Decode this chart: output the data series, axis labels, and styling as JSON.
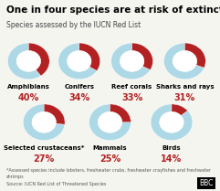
{
  "title": "One in four species are at risk of extinction",
  "subtitle": "Species assessed by the IUCN Red List",
  "footnote": "*Assessed species include lobsters, freshwater crabs, freshwater crayfishes and freshwater\nshrimps",
  "source": "Source: IUCN Red List of Threatened Species",
  "species": [
    {
      "name": "Amphibians",
      "pct": 40,
      "row": 0,
      "col": 0
    },
    {
      "name": "Conifers",
      "pct": 34,
      "row": 0,
      "col": 1
    },
    {
      "name": "Reef corals",
      "pct": 33,
      "row": 0,
      "col": 2
    },
    {
      "name": "Sharks and rays",
      "pct": 31,
      "row": 0,
      "col": 3
    },
    {
      "name": "Selected crustaceans*",
      "pct": 27,
      "row": 1,
      "col": 0
    },
    {
      "name": "Mammals",
      "pct": 25,
      "row": 1,
      "col": 1
    },
    {
      "name": "Birds",
      "pct": 14,
      "row": 1,
      "col": 2
    }
  ],
  "color_red": "#b22222",
  "color_light_blue": "#add8e6",
  "color_bg": "#f5f5f0",
  "title_fontsize": 7.5,
  "subtitle_fontsize": 5.5,
  "label_fontsize": 5.0,
  "pct_fontsize": 7.0,
  "footnote_fontsize": 3.5,
  "source_fontsize": 3.5
}
